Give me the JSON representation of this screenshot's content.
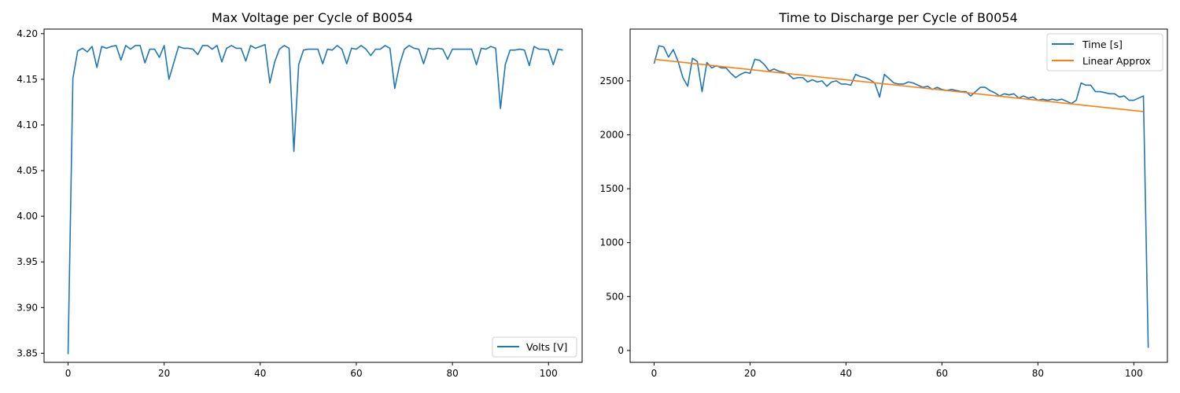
{
  "chart_data": [
    {
      "type": "line",
      "title": "Max Voltage per Cycle of B0054",
      "xlabel": "",
      "ylabel": "",
      "xlim": [
        -5,
        107
      ],
      "ylim": [
        3.84,
        4.205
      ],
      "xticks": [
        0,
        20,
        40,
        60,
        80,
        100
      ],
      "yticks": [
        3.85,
        3.9,
        3.95,
        4.0,
        4.05,
        4.1,
        4.15,
        4.2
      ],
      "ytick_labels": [
        "3.85",
        "3.90",
        "3.95",
        "4.00",
        "4.05",
        "4.10",
        "4.15",
        "4.20"
      ],
      "grid": false,
      "legend": "lower-right",
      "series": [
        {
          "name": "Volts [V]",
          "color": "#1f77b4",
          "values": [
            3.849,
            4.151,
            4.181,
            4.184,
            4.18,
            4.186,
            4.163,
            4.186,
            4.184,
            4.186,
            4.187,
            4.171,
            4.187,
            4.183,
            4.187,
            4.187,
            4.168,
            4.183,
            4.183,
            4.174,
            4.187,
            4.15,
            4.168,
            4.186,
            4.184,
            4.184,
            4.183,
            4.177,
            4.187,
            4.187,
            4.183,
            4.187,
            4.169,
            4.184,
            4.187,
            4.184,
            4.184,
            4.17,
            4.187,
            4.184,
            4.186,
            4.188,
            4.146,
            4.169,
            4.183,
            4.187,
            4.184,
            4.071,
            4.166,
            4.182,
            4.183,
            4.183,
            4.183,
            4.167,
            4.183,
            4.182,
            4.187,
            4.183,
            4.167,
            4.184,
            4.183,
            4.187,
            4.183,
            4.176,
            4.183,
            4.183,
            4.187,
            4.184,
            4.14,
            4.166,
            4.183,
            4.187,
            4.184,
            4.183,
            4.167,
            4.184,
            4.183,
            4.184,
            4.183,
            4.172,
            4.183,
            4.183,
            4.183,
            4.183,
            4.183,
            4.166,
            4.184,
            4.183,
            4.186,
            4.184,
            4.118,
            4.166,
            4.182,
            4.182,
            4.183,
            4.182,
            4.165,
            4.186,
            4.183,
            4.183,
            4.182,
            4.166,
            4.183,
            4.182
          ]
        }
      ]
    },
    {
      "type": "line",
      "title": "Time to Discharge per Cycle of B0054",
      "xlabel": "",
      "ylabel": "",
      "xlim": [
        -5,
        107
      ],
      "ylim": [
        -110,
        2980
      ],
      "xticks": [
        0,
        20,
        40,
        60,
        80,
        100
      ],
      "yticks": [
        0,
        500,
        1000,
        1500,
        2000,
        2500
      ],
      "ytick_labels": [
        "0",
        "500",
        "1000",
        "1500",
        "2000",
        "2500"
      ],
      "grid": false,
      "legend": "upper-right",
      "series": [
        {
          "name": "Time [s]",
          "color": "#1f77b4",
          "values": [
            2660,
            2825,
            2815,
            2720,
            2790,
            2680,
            2530,
            2450,
            2710,
            2680,
            2400,
            2670,
            2620,
            2640,
            2620,
            2620,
            2570,
            2530,
            2560,
            2580,
            2570,
            2700,
            2690,
            2650,
            2590,
            2610,
            2590,
            2580,
            2560,
            2520,
            2530,
            2530,
            2490,
            2510,
            2490,
            2500,
            2450,
            2490,
            2500,
            2470,
            2470,
            2460,
            2560,
            2540,
            2530,
            2510,
            2480,
            2350,
            2560,
            2520,
            2480,
            2470,
            2470,
            2490,
            2480,
            2460,
            2440,
            2450,
            2420,
            2440,
            2420,
            2410,
            2420,
            2410,
            2400,
            2400,
            2360,
            2400,
            2440,
            2440,
            2410,
            2390,
            2360,
            2380,
            2370,
            2380,
            2340,
            2360,
            2340,
            2350,
            2320,
            2330,
            2320,
            2330,
            2320,
            2330,
            2310,
            2290,
            2320,
            2480,
            2460,
            2460,
            2400,
            2400,
            2390,
            2380,
            2380,
            2350,
            2360,
            2320,
            2320,
            2340,
            2360,
            25
          ]
        },
        {
          "name": "Linear Approx",
          "color": "#ff7f0e",
          "x": [
            0,
            102
          ],
          "values": [
            2700,
            2215
          ]
        }
      ]
    }
  ]
}
